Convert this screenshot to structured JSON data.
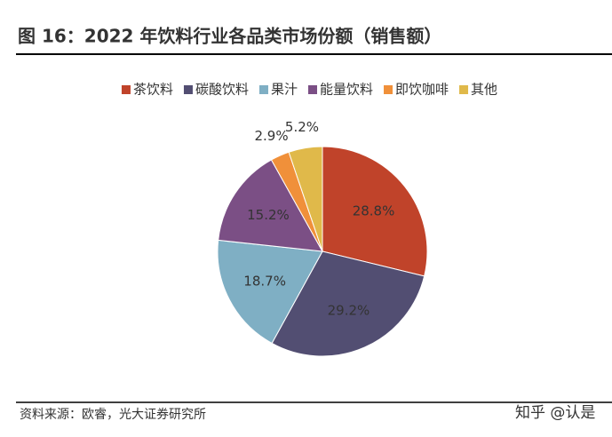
{
  "title": "图 16：2022 年饮料行业各品类市场份额（销售额）",
  "chart_data": {
    "type": "pie",
    "categories": [
      "茶饮料",
      "碳酸饮料",
      "果汁",
      "能量饮料",
      "即饮咖啡",
      "其他"
    ],
    "values": [
      28.8,
      29.2,
      18.7,
      15.2,
      2.9,
      5.2
    ],
    "value_labels": [
      "28.8%",
      "29.2%",
      "18.7%",
      "15.2%",
      "2.9%",
      "5.2%"
    ],
    "colors": [
      "#c0432a",
      "#524e72",
      "#7fafc4",
      "#7b4f85",
      "#f0903a",
      "#e0b94a"
    ],
    "legend": "top"
  },
  "source": "资料来源：欧睿，光大证券研究所",
  "watermark": "知乎 @认是"
}
